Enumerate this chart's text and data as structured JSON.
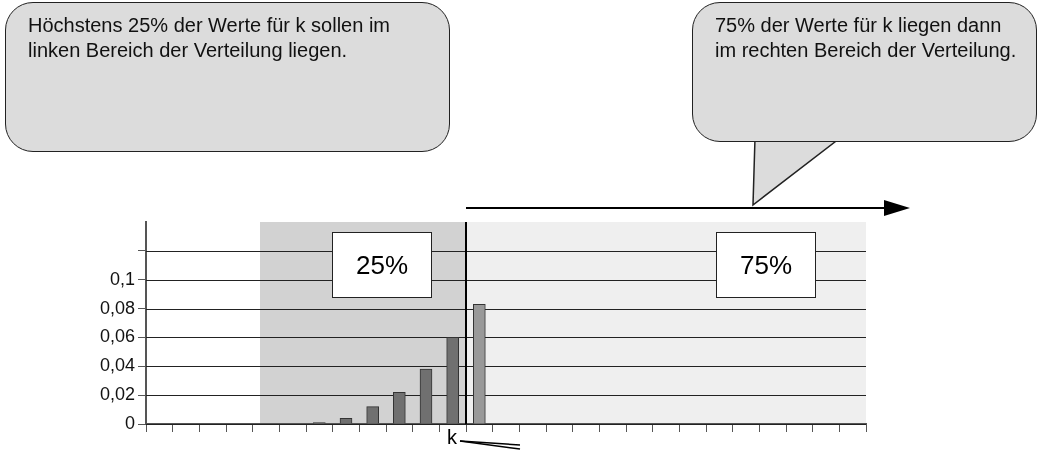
{
  "chart_data": {
    "type": "bar",
    "categories": [
      null,
      null,
      null,
      null,
      null,
      null,
      null,
      null,
      null,
      null,
      null,
      null,
      null,
      null,
      null,
      null,
      null,
      null,
      null,
      null,
      null,
      null,
      null,
      null,
      null,
      null,
      null
    ],
    "values": [
      0,
      0,
      0,
      0,
      0,
      0,
      0.001,
      0.004,
      0.012,
      0.022,
      0.038,
      0.06,
      0.083,
      null,
      null,
      null,
      null,
      null,
      null,
      null,
      null,
      null,
      null,
      null,
      null,
      null,
      null
    ],
    "colors": [
      "#707070",
      "#707070",
      "#707070",
      "#707070",
      "#707070",
      "#707070",
      "#707070",
      "#707070",
      "#707070",
      "#707070",
      "#707070",
      "#707070",
      "#999999",
      "#999999",
      "#999999",
      "#999999",
      "#999999",
      "#999999",
      "#999999",
      "#999999",
      "#999999",
      "#999999",
      "#999999",
      "#999999",
      "#999999",
      "#999999",
      "#999999"
    ],
    "ylim": [
      0,
      0.14
    ],
    "yticks": [
      {
        "value": 0,
        "label": "0"
      },
      {
        "value": 0.02,
        "label": "0,02"
      },
      {
        "value": 0.04,
        "label": "0,04"
      },
      {
        "value": 0.06,
        "label": "0,06"
      },
      {
        "value": 0.08,
        "label": "0,08"
      },
      {
        "value": 0.1,
        "label": "0,1"
      },
      {
        "value": 0.12,
        "label": null
      }
    ],
    "grid": "y",
    "tick_labels": "y",
    "annotations": [
      "Höchstens 25% der Werte für k sollen im linken Bereich der Verteilung liegen.",
      "75% der Werte für k liegen dann im rechten Bereich der Verteilung.",
      "25%",
      "75%",
      "k"
    ]
  }
}
